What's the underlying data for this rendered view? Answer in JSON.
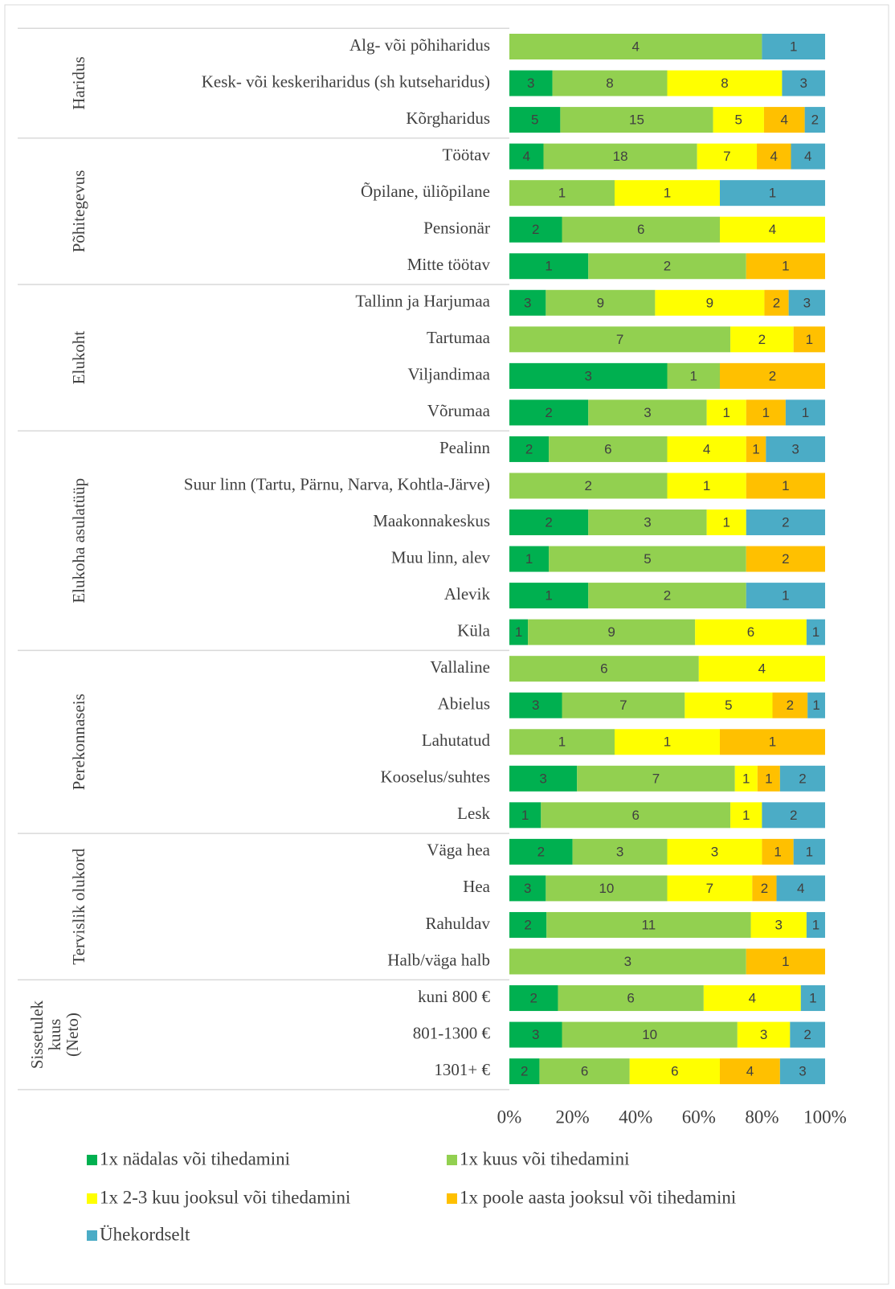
{
  "chart_data": {
    "type": "stacked-bar-100",
    "groups": [
      {
        "name": "Haridus",
        "categories": [
          "Alg- või põhiharidus",
          "Kesk- või keskeriharidus (sh kutseharidus)",
          "Kõrgharidus"
        ]
      },
      {
        "name": "Põhitegevus",
        "categories": [
          "Töötav",
          "Õpilane, üliõpilane",
          "Pensionär",
          "Mitte töötav"
        ]
      },
      {
        "name": "Elukoht",
        "categories": [
          "Tallinn ja Harjumaa",
          "Tartumaa",
          "Viljandimaa",
          "Võrumaa"
        ]
      },
      {
        "name": "Elukoha asulatüüp",
        "categories": [
          "Pealinn",
          "Suur linn (Tartu, Pärnu, Narva, Kohtla-Järve)",
          "Maakonnakeskus",
          "Muu linn, alev",
          "Alevik",
          "Küla"
        ]
      },
      {
        "name": "Perekonnaseis",
        "categories": [
          "Vallaline",
          "Abielus",
          "Lahutatud",
          "Kooselus/suhtes",
          "Lesk"
        ]
      },
      {
        "name": "Tervislik olukord",
        "categories": [
          "Väga hea",
          "Hea",
          "Rahuldav",
          "Halb/väga halb"
        ]
      },
      {
        "name": "Sissetulek kuus (Neto)",
        "categories": [
          "kuni 800 €",
          "801-1300 €",
          "1301+ €"
        ]
      }
    ],
    "series": [
      {
        "name": "1x nädalas või tihedamini",
        "color": "#00b050",
        "values": [
          null,
          3,
          5,
          4,
          null,
          2,
          1,
          3,
          null,
          3,
          2,
          2,
          null,
          2,
          1,
          1,
          1,
          null,
          3,
          null,
          3,
          1,
          2,
          3,
          2,
          null,
          2,
          3,
          2
        ]
      },
      {
        "name": "1x kuus või tihedamini",
        "color": "#92d050",
        "values": [
          4,
          8,
          15,
          18,
          1,
          6,
          2,
          9,
          7,
          1,
          3,
          6,
          2,
          3,
          5,
          2,
          9,
          6,
          7,
          1,
          7,
          6,
          3,
          10,
          11,
          3,
          6,
          10,
          6
        ]
      },
      {
        "name": "1x 2-3 kuu jooksul või tihedamini",
        "color": "#ffff00",
        "values": [
          null,
          8,
          5,
          7,
          1,
          4,
          null,
          9,
          2,
          null,
          1,
          4,
          1,
          1,
          null,
          null,
          6,
          4,
          5,
          1,
          1,
          1,
          3,
          7,
          3,
          null,
          4,
          3,
          6
        ]
      },
      {
        "name": "1x poole aasta jooksul või tihedamini",
        "color": "#ffc000",
        "values": [
          null,
          null,
          4,
          4,
          null,
          null,
          1,
          2,
          1,
          2,
          1,
          1,
          1,
          null,
          2,
          null,
          null,
          null,
          2,
          1,
          1,
          null,
          1,
          2,
          null,
          1,
          null,
          null,
          4
        ]
      },
      {
        "name": "Ühekordselt",
        "color": "#4bacc6",
        "values": [
          1,
          3,
          2,
          4,
          1,
          null,
          null,
          3,
          null,
          null,
          1,
          3,
          null,
          2,
          null,
          1,
          1,
          null,
          1,
          null,
          2,
          2,
          1,
          4,
          1,
          null,
          1,
          2,
          3
        ]
      }
    ],
    "xlim": [
      0,
      100
    ],
    "xticks": [
      {
        "value": 0,
        "label": "0%"
      },
      {
        "value": 20,
        "label": "20%"
      },
      {
        "value": 40,
        "label": "40%"
      },
      {
        "value": 60,
        "label": "60%"
      },
      {
        "value": 80,
        "label": "80%"
      },
      {
        "value": 100,
        "label": "100%"
      }
    ]
  }
}
